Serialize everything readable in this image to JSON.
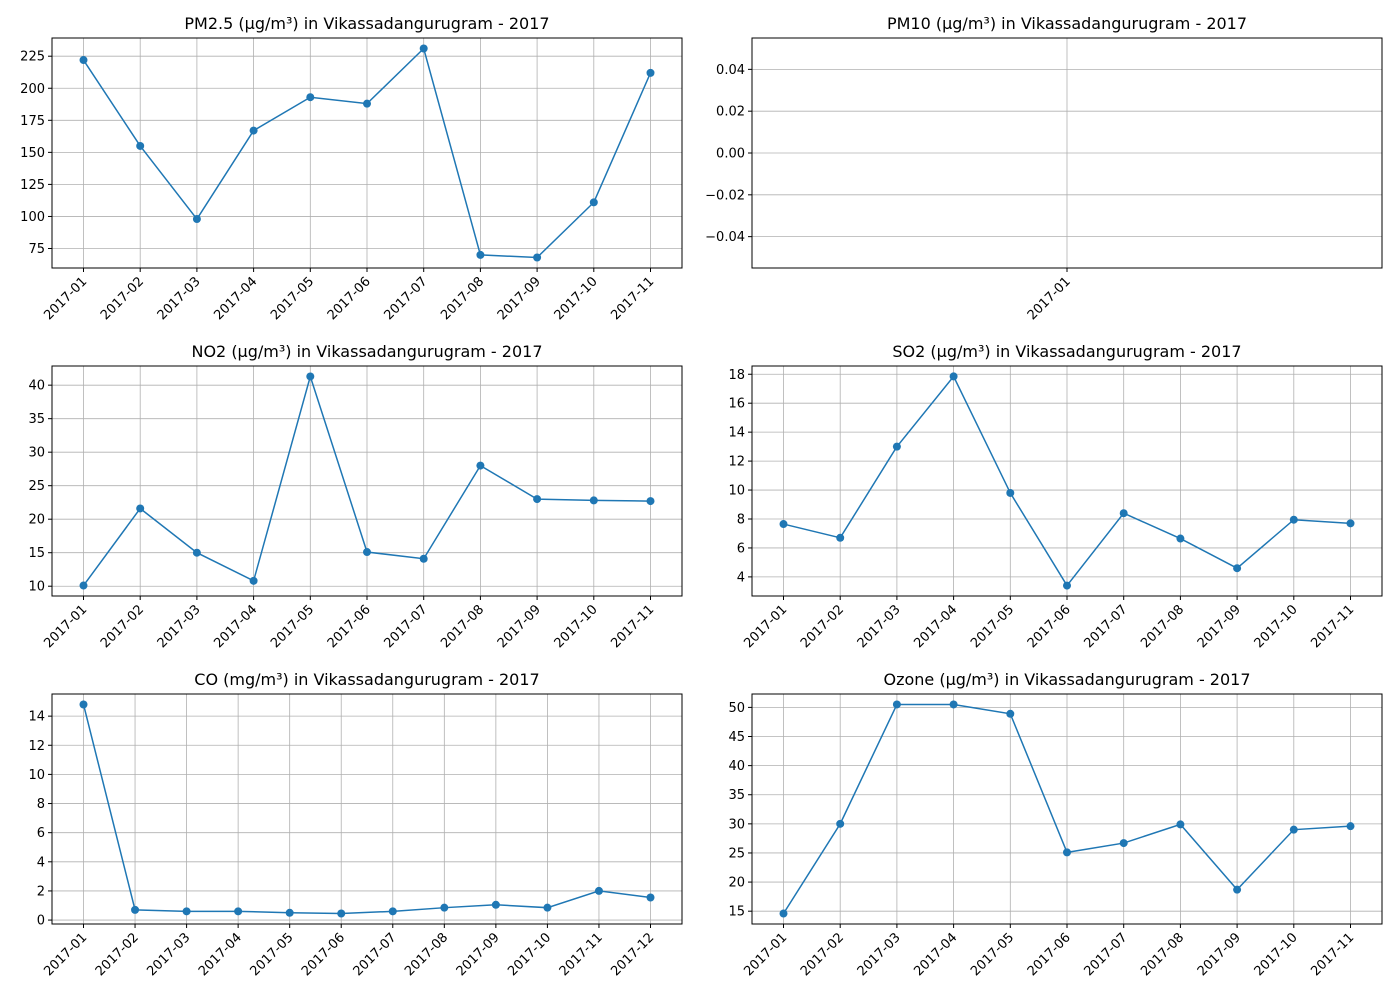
{
  "chart_data": [
    {
      "type": "line",
      "title": "PM2.5 (µg/m³) in Vikassadangurugram - 2017",
      "categories": [
        "2017-01",
        "2017-02",
        "2017-03",
        "2017-04",
        "2017-05",
        "2017-06",
        "2017-07",
        "2017-08",
        "2017-09",
        "2017-10",
        "2017-11"
      ],
      "values": [
        222,
        155,
        98,
        167,
        193,
        188,
        231,
        70,
        68,
        111,
        212
      ],
      "color": "#1f77b4",
      "ylim": [
        59.8,
        239.2
      ],
      "yticks": [
        75,
        100,
        125,
        150,
        175,
        200,
        225
      ],
      "grid": true
    },
    {
      "type": "line",
      "title": "PM10 (µg/m³) in Vikassadangurugram - 2017",
      "categories": [
        "2017-01"
      ],
      "values": [
        null
      ],
      "color": "#1f77b4",
      "ylim": [
        -0.055,
        0.055
      ],
      "yticks": [
        {
          "value": -0.04,
          "label": "−0.04"
        },
        {
          "value": -0.02,
          "label": "−0.02"
        },
        {
          "value": 0,
          "label": "0.00"
        },
        {
          "value": 0.02,
          "label": "0.02"
        },
        {
          "value": 0.04,
          "label": "0.04"
        }
      ],
      "grid": true
    },
    {
      "type": "line",
      "title": "NO2 (µg/m³) in Vikassadangurugram - 2017",
      "categories": [
        "2017-01",
        "2017-02",
        "2017-03",
        "2017-04",
        "2017-05",
        "2017-06",
        "2017-07",
        "2017-08",
        "2017-09",
        "2017-10",
        "2017-11"
      ],
      "values": [
        10.1,
        21.6,
        15.0,
        10.8,
        41.3,
        15.1,
        14.1,
        28.0,
        23.0,
        22.8,
        22.7
      ],
      "color": "#1f77b4",
      "ylim": [
        8.54,
        42.86
      ],
      "yticks": [
        10,
        15,
        20,
        25,
        30,
        35,
        40
      ],
      "grid": true
    },
    {
      "type": "line",
      "title": "SO2 (µg/m³) in Vikassadangurugram - 2017",
      "categories": [
        "2017-01",
        "2017-02",
        "2017-03",
        "2017-04",
        "2017-05",
        "2017-06",
        "2017-07",
        "2017-08",
        "2017-09",
        "2017-10",
        "2017-11"
      ],
      "values": [
        7.65,
        6.7,
        13.0,
        17.85,
        9.8,
        3.4,
        8.4,
        6.65,
        4.6,
        7.95,
        7.7
      ],
      "color": "#1f77b4",
      "ylim": [
        2.68,
        18.57
      ],
      "yticks": [
        4,
        6,
        8,
        10,
        12,
        14,
        16,
        18
      ],
      "grid": true
    },
    {
      "type": "line",
      "title": "CO (mg/m³) in Vikassadangurugram - 2017",
      "categories": [
        "2017-01",
        "2017-02",
        "2017-03",
        "2017-04",
        "2017-05",
        "2017-06",
        "2017-07",
        "2017-08",
        "2017-09",
        "2017-10",
        "2017-11",
        "2017-12"
      ],
      "values": [
        14.8,
        0.7,
        0.6,
        0.6,
        0.5,
        0.45,
        0.6,
        0.85,
        1.05,
        0.85,
        2.0,
        1.55
      ],
      "color": "#1f77b4",
      "ylim": [
        -0.27,
        15.52
      ],
      "yticks": [
        0,
        2,
        4,
        6,
        8,
        10,
        12,
        14
      ],
      "grid": true
    },
    {
      "type": "line",
      "title": "Ozone (µg/m³) in Vikassadangurugram - 2017",
      "categories": [
        "2017-01",
        "2017-02",
        "2017-03",
        "2017-04",
        "2017-05",
        "2017-06",
        "2017-07",
        "2017-08",
        "2017-09",
        "2017-10",
        "2017-11"
      ],
      "values": [
        14.6,
        30.0,
        50.5,
        50.5,
        48.9,
        25.1,
        26.7,
        29.9,
        18.7,
        29.0,
        29.6
      ],
      "color": "#1f77b4",
      "ylim": [
        12.8,
        52.3
      ],
      "yticks": [
        15,
        20,
        25,
        30,
        35,
        40,
        45,
        50
      ],
      "grid": true
    }
  ]
}
